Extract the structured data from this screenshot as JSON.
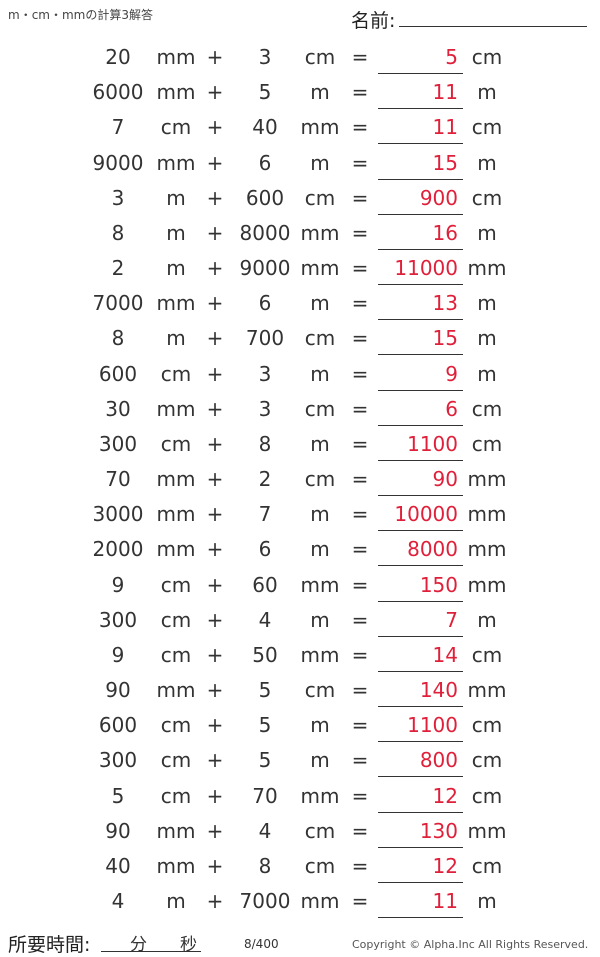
{
  "header": {
    "title": "m・cm・mmの計算3解答",
    "name_label": "名前:"
  },
  "answer_color": "#e0203a",
  "problems": [
    {
      "a": "20",
      "ua": "mm",
      "op": "+",
      "b": "3",
      "ub": "cm",
      "eq": "=",
      "ans": "5",
      "uans": "cm"
    },
    {
      "a": "6000",
      "ua": "mm",
      "op": "+",
      "b": "5",
      "ub": "m",
      "eq": "=",
      "ans": "11",
      "uans": "m"
    },
    {
      "a": "7",
      "ua": "cm",
      "op": "+",
      "b": "40",
      "ub": "mm",
      "eq": "=",
      "ans": "11",
      "uans": "cm"
    },
    {
      "a": "9000",
      "ua": "mm",
      "op": "+",
      "b": "6",
      "ub": "m",
      "eq": "=",
      "ans": "15",
      "uans": "m"
    },
    {
      "a": "3",
      "ua": "m",
      "op": "+",
      "b": "600",
      "ub": "cm",
      "eq": "=",
      "ans": "900",
      "uans": "cm"
    },
    {
      "a": "8",
      "ua": "m",
      "op": "+",
      "b": "8000",
      "ub": "mm",
      "eq": "=",
      "ans": "16",
      "uans": "m"
    },
    {
      "a": "2",
      "ua": "m",
      "op": "+",
      "b": "9000",
      "ub": "mm",
      "eq": "=",
      "ans": "11000",
      "uans": "mm"
    },
    {
      "a": "7000",
      "ua": "mm",
      "op": "+",
      "b": "6",
      "ub": "m",
      "eq": "=",
      "ans": "13",
      "uans": "m"
    },
    {
      "a": "8",
      "ua": "m",
      "op": "+",
      "b": "700",
      "ub": "cm",
      "eq": "=",
      "ans": "15",
      "uans": "m"
    },
    {
      "a": "600",
      "ua": "cm",
      "op": "+",
      "b": "3",
      "ub": "m",
      "eq": "=",
      "ans": "9",
      "uans": "m"
    },
    {
      "a": "30",
      "ua": "mm",
      "op": "+",
      "b": "3",
      "ub": "cm",
      "eq": "=",
      "ans": "6",
      "uans": "cm"
    },
    {
      "a": "300",
      "ua": "cm",
      "op": "+",
      "b": "8",
      "ub": "m",
      "eq": "=",
      "ans": "1100",
      "uans": "cm"
    },
    {
      "a": "70",
      "ua": "mm",
      "op": "+",
      "b": "2",
      "ub": "cm",
      "eq": "=",
      "ans": "90",
      "uans": "mm"
    },
    {
      "a": "3000",
      "ua": "mm",
      "op": "+",
      "b": "7",
      "ub": "m",
      "eq": "=",
      "ans": "10000",
      "uans": "mm"
    },
    {
      "a": "2000",
      "ua": "mm",
      "op": "+",
      "b": "6",
      "ub": "m",
      "eq": "=",
      "ans": "8000",
      "uans": "mm"
    },
    {
      "a": "9",
      "ua": "cm",
      "op": "+",
      "b": "60",
      "ub": "mm",
      "eq": "=",
      "ans": "150",
      "uans": "mm"
    },
    {
      "a": "300",
      "ua": "cm",
      "op": "+",
      "b": "4",
      "ub": "m",
      "eq": "=",
      "ans": "7",
      "uans": "m"
    },
    {
      "a": "9",
      "ua": "cm",
      "op": "+",
      "b": "50",
      "ub": "mm",
      "eq": "=",
      "ans": "14",
      "uans": "cm"
    },
    {
      "a": "90",
      "ua": "mm",
      "op": "+",
      "b": "5",
      "ub": "cm",
      "eq": "=",
      "ans": "140",
      "uans": "mm"
    },
    {
      "a": "600",
      "ua": "cm",
      "op": "+",
      "b": "5",
      "ub": "m",
      "eq": "=",
      "ans": "1100",
      "uans": "cm"
    },
    {
      "a": "300",
      "ua": "cm",
      "op": "+",
      "b": "5",
      "ub": "m",
      "eq": "=",
      "ans": "800",
      "uans": "cm"
    },
    {
      "a": "5",
      "ua": "cm",
      "op": "+",
      "b": "70",
      "ub": "mm",
      "eq": "=",
      "ans": "12",
      "uans": "cm"
    },
    {
      "a": "90",
      "ua": "mm",
      "op": "+",
      "b": "4",
      "ub": "cm",
      "eq": "=",
      "ans": "130",
      "uans": "mm"
    },
    {
      "a": "40",
      "ua": "mm",
      "op": "+",
      "b": "8",
      "ub": "cm",
      "eq": "=",
      "ans": "12",
      "uans": "cm"
    },
    {
      "a": "4",
      "ua": "m",
      "op": "+",
      "b": "7000",
      "ub": "mm",
      "eq": "=",
      "ans": "11",
      "uans": "m"
    }
  ],
  "footer": {
    "time_label": "所要時間:",
    "minutes_label": "分",
    "seconds_label": "秒",
    "page": "8/400",
    "copyright": "Copyright © Alpha.Inc All Rights Reserved."
  }
}
